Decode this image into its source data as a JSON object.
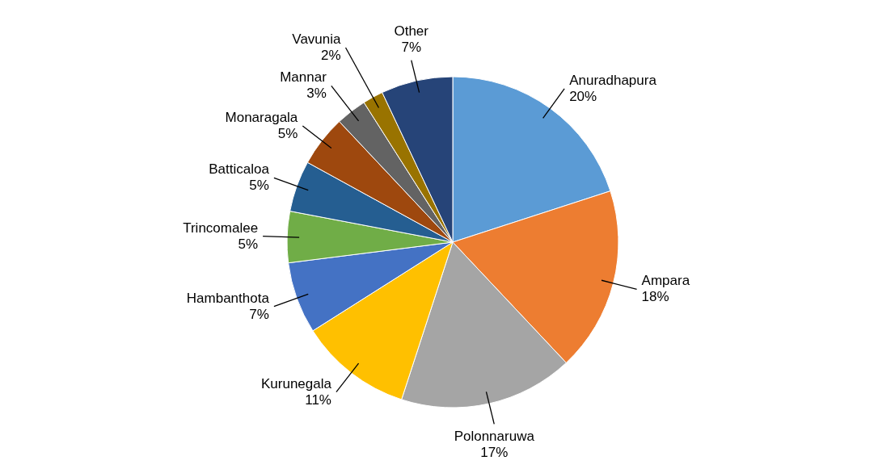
{
  "chart_data": {
    "type": "pie",
    "categories": [
      "Anuradhapura",
      "Ampara",
      "Polonnaruwa",
      "Kurunegala",
      "Hambanthota",
      "Trincomalee",
      "Batticaloa",
      "Monaragala",
      "Mannar",
      "Vavunia",
      "Other"
    ],
    "values": [
      20,
      18,
      17,
      11,
      7,
      5,
      5,
      5,
      3,
      2,
      7
    ],
    "value_labels": [
      "20%",
      "18%",
      "17%",
      "11%",
      "7%",
      "5%",
      "5%",
      "5%",
      "3%",
      "2%",
      "7%"
    ],
    "colors": [
      "#5b9bd5",
      "#ed7d31",
      "#a5a5a5",
      "#ffc000",
      "#4472c4",
      "#70ad47",
      "#255e91",
      "#9e480e",
      "#636363",
      "#997300",
      "#264478"
    ]
  }
}
